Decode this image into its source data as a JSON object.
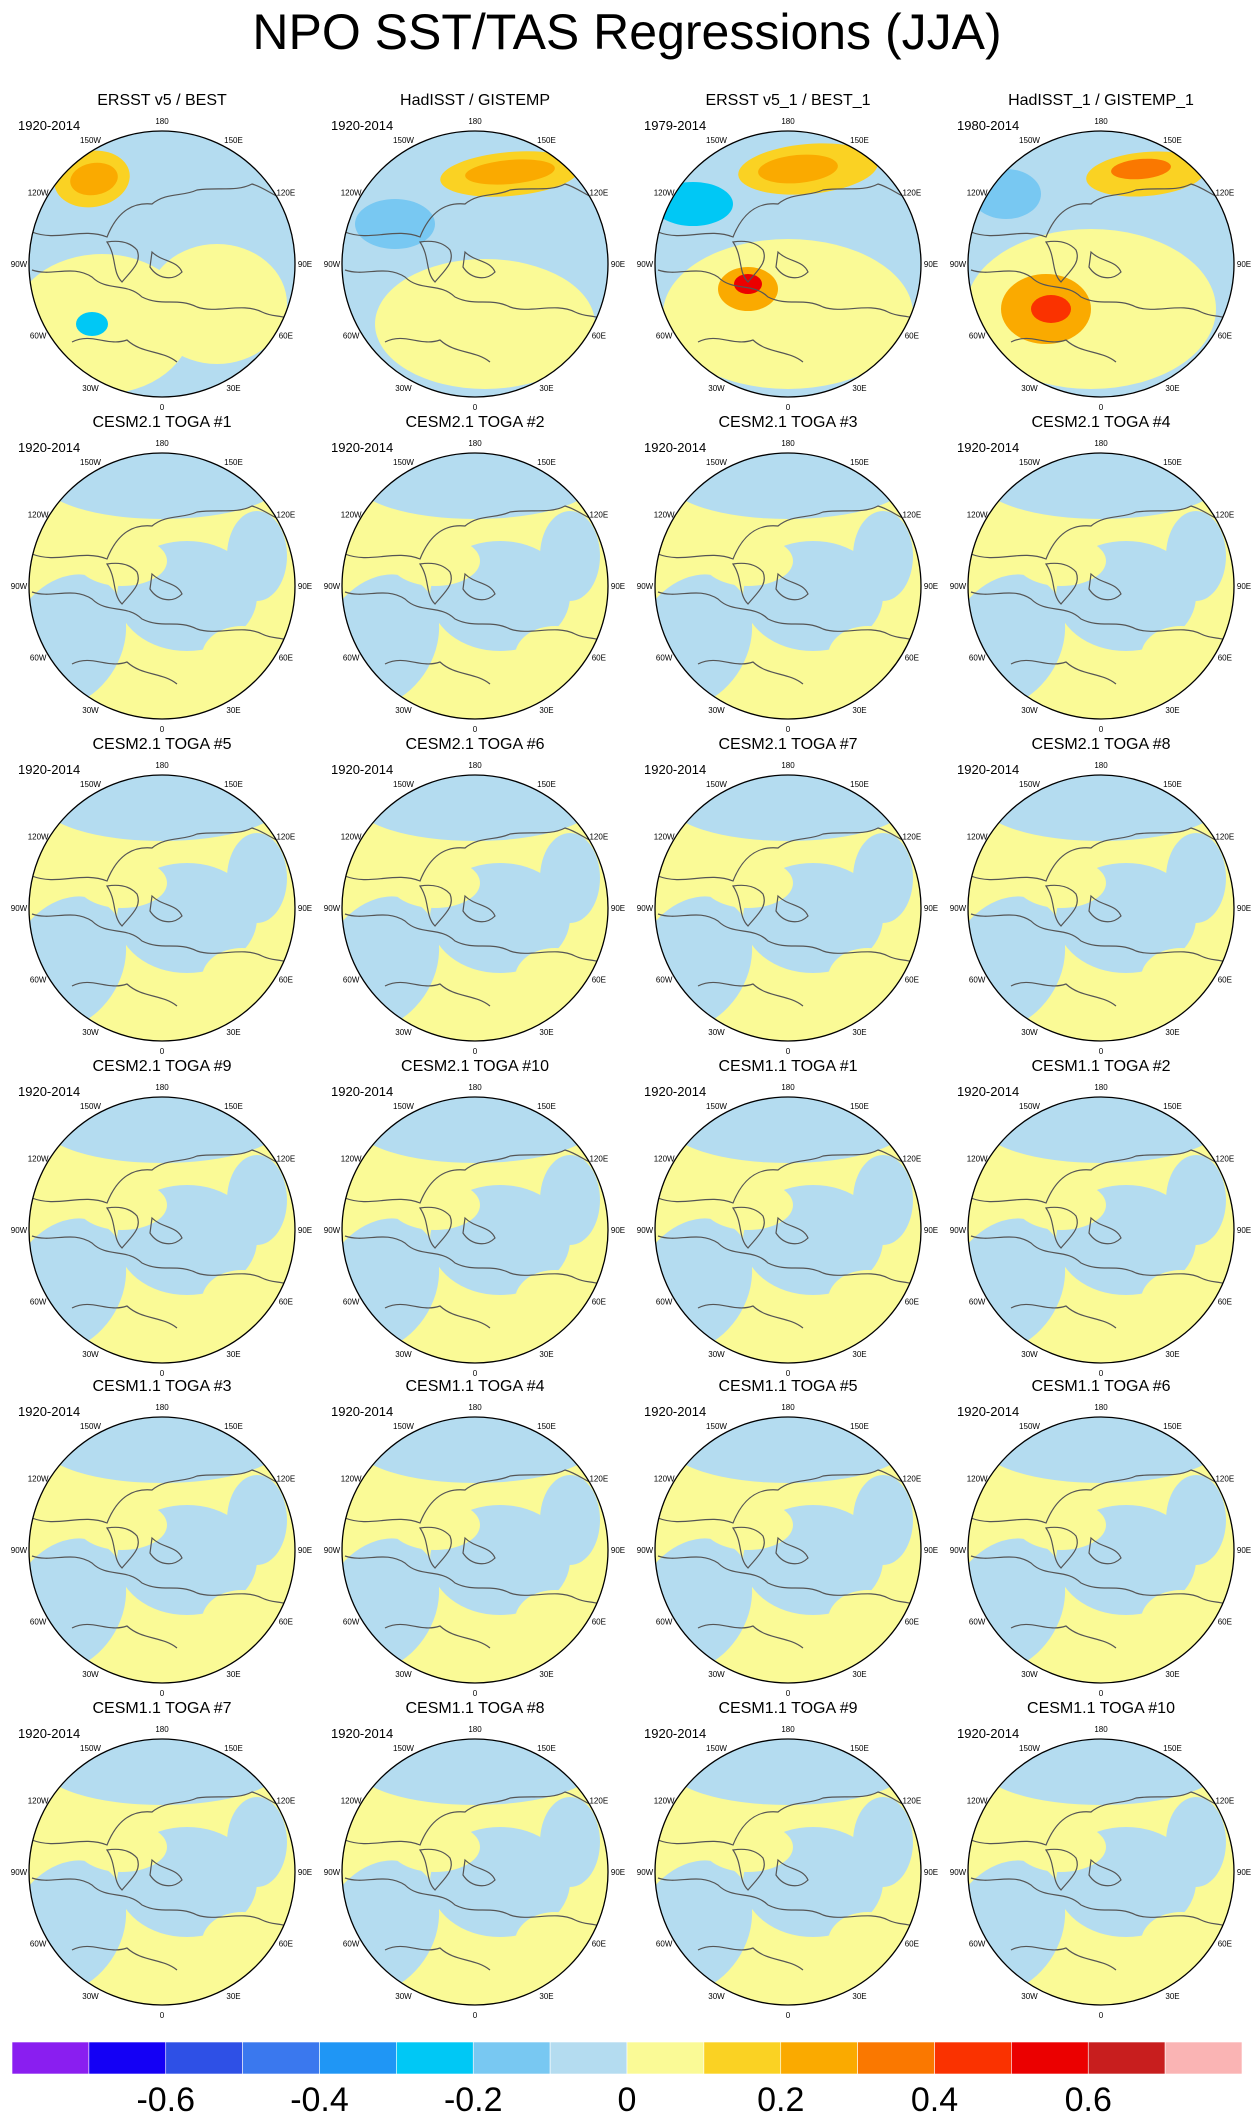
{
  "title": "NPO SST/TAS Regressions (JJA)",
  "lon_labels": [
    "180",
    "150E",
    "120E",
    "90E",
    "60E",
    "30E",
    "0",
    "30W",
    "60W",
    "90W",
    "120W",
    "150W"
  ],
  "panels": [
    {
      "title": "ERSST v5 / BEST",
      "period": "1920-2014",
      "pattern": "obs1"
    },
    {
      "title": "HadISST / GISTEMP",
      "period": "1920-2014",
      "pattern": "obs2"
    },
    {
      "title": "ERSST v5_1 / BEST_1",
      "period": "1979-2014",
      "pattern": "obs3"
    },
    {
      "title": "HadISST_1 / GISTEMP_1",
      "period": "1980-2014",
      "pattern": "obs4"
    },
    {
      "title": "CESM2.1 TOGA #1",
      "period": "1920-2014",
      "pattern": "model"
    },
    {
      "title": "CESM2.1 TOGA #2",
      "period": "1920-2014",
      "pattern": "model"
    },
    {
      "title": "CESM2.1 TOGA #3",
      "period": "1920-2014",
      "pattern": "model"
    },
    {
      "title": "CESM2.1 TOGA #4",
      "period": "1920-2014",
      "pattern": "model"
    },
    {
      "title": "CESM2.1 TOGA #5",
      "period": "1920-2014",
      "pattern": "model"
    },
    {
      "title": "CESM2.1 TOGA #6",
      "period": "1920-2014",
      "pattern": "model"
    },
    {
      "title": "CESM2.1 TOGA #7",
      "period": "1920-2014",
      "pattern": "model"
    },
    {
      "title": "CESM2.1 TOGA #8",
      "period": "1920-2014",
      "pattern": "model"
    },
    {
      "title": "CESM2.1 TOGA #9",
      "period": "1920-2014",
      "pattern": "model"
    },
    {
      "title": "CESM2.1 TOGA #10",
      "period": "1920-2014",
      "pattern": "model"
    },
    {
      "title": "CESM1.1 TOGA #1",
      "period": "1920-2014",
      "pattern": "model"
    },
    {
      "title": "CESM1.1 TOGA #2",
      "period": "1920-2014",
      "pattern": "model"
    },
    {
      "title": "CESM1.1 TOGA #3",
      "period": "1920-2014",
      "pattern": "model"
    },
    {
      "title": "CESM1.1 TOGA #4",
      "period": "1920-2014",
      "pattern": "model"
    },
    {
      "title": "CESM1.1 TOGA #5",
      "period": "1920-2014",
      "pattern": "model"
    },
    {
      "title": "CESM1.1 TOGA #6",
      "period": "1920-2014",
      "pattern": "model"
    },
    {
      "title": "CESM1.1 TOGA #7",
      "period": "1920-2014",
      "pattern": "model"
    },
    {
      "title": "CESM1.1 TOGA #8",
      "period": "1920-2014",
      "pattern": "model"
    },
    {
      "title": "CESM1.1 TOGA #9",
      "period": "1920-2014",
      "pattern": "model"
    },
    {
      "title": "CESM1.1 TOGA #10",
      "period": "1920-2014",
      "pattern": "model"
    }
  ],
  "colorbar": {
    "colors": [
      "#8a1ef0",
      "#1400f5",
      "#2e50e6",
      "#3a78ee",
      "#1f96f5",
      "#00c8f5",
      "#78c8f2",
      "#b4dcf0",
      "#fafa96",
      "#fad223",
      "#faaa00",
      "#fa7800",
      "#fa3200",
      "#eb0000",
      "#c81e1e",
      "#fab4b4"
    ],
    "labels": [
      "-0.6",
      "-0.4",
      "-0.2",
      "0",
      "0.2",
      "0.4",
      "0.6"
    ],
    "label_values": [
      -0.6,
      -0.4,
      -0.2,
      0,
      0.2,
      0.4,
      0.6
    ],
    "levels": [
      -0.7,
      -0.6,
      -0.5,
      -0.4,
      -0.3,
      -0.2,
      -0.1,
      0,
      0.1,
      0.2,
      0.3,
      0.4,
      0.5,
      0.6,
      0.7
    ]
  }
}
